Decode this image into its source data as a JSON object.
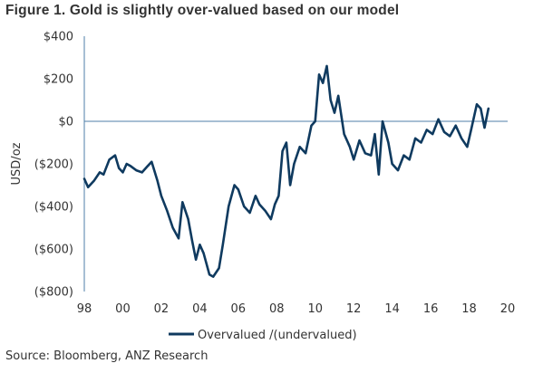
{
  "figure": {
    "title": "Figure 1. Gold is slightly over-valued based on our model",
    "source": "Source: Bloomberg, ANZ Research"
  },
  "chart_data": {
    "type": "line",
    "ylabel": "USD/oz",
    "xlabel": "",
    "xlim": [
      1998,
      2020
    ],
    "ylim": [
      -800,
      400
    ],
    "x_tick_values": [
      1998,
      2000,
      2002,
      2004,
      2006,
      2008,
      2010,
      2012,
      2014,
      2016,
      2018,
      2020
    ],
    "x_tick_labels": [
      "98",
      "00",
      "02",
      "04",
      "06",
      "08",
      "10",
      "12",
      "14",
      "16",
      "18",
      "20"
    ],
    "y_tick_values": [
      400,
      200,
      0,
      -200,
      -400,
      -600,
      -800
    ],
    "y_tick_labels": [
      "$400",
      "$200",
      "$0",
      "($200)",
      "($400)",
      "($600)",
      "($800)"
    ],
    "legend_position": "bottom",
    "line_color": "#0f3a5f",
    "axis_color": "#4f7fa8",
    "series": [
      {
        "name": "Overvalued /(undervalued)",
        "x": [
          1998.0,
          1998.2,
          1998.5,
          1998.8,
          1999.0,
          1999.3,
          1999.6,
          1999.8,
          2000.0,
          2000.2,
          2000.4,
          2000.7,
          2001.0,
          2001.3,
          2001.5,
          2001.8,
          2002.0,
          2002.3,
          2002.6,
          2002.9,
          2003.1,
          2003.4,
          2003.6,
          2003.8,
          2004.0,
          2004.2,
          2004.5,
          2004.7,
          2005.0,
          2005.2,
          2005.5,
          2005.8,
          2006.0,
          2006.3,
          2006.6,
          2006.9,
          2007.1,
          2007.4,
          2007.7,
          2007.9,
          2008.1,
          2008.3,
          2008.5,
          2008.7,
          2008.9,
          2009.2,
          2009.5,
          2009.8,
          2010.0,
          2010.2,
          2010.4,
          2010.6,
          2010.8,
          2011.0,
          2011.2,
          2011.5,
          2011.8,
          2012.0,
          2012.3,
          2012.6,
          2012.9,
          2013.1,
          2013.3,
          2013.5,
          2013.8,
          2014.0,
          2014.3,
          2014.6,
          2014.9,
          2015.2,
          2015.5,
          2015.8,
          2016.1,
          2016.4,
          2016.7,
          2017.0,
          2017.3,
          2017.6,
          2017.9,
          2018.1,
          2018.4,
          2018.6,
          2018.8,
          2019.0
        ],
        "y": [
          -270,
          -310,
          -280,
          -240,
          -250,
          -180,
          -160,
          -220,
          -240,
          -200,
          -210,
          -230,
          -240,
          -210,
          -190,
          -280,
          -350,
          -420,
          -500,
          -550,
          -380,
          -460,
          -560,
          -650,
          -580,
          -620,
          -720,
          -730,
          -690,
          -580,
          -400,
          -300,
          -320,
          -400,
          -430,
          -350,
          -390,
          -420,
          -460,
          -390,
          -350,
          -140,
          -100,
          -300,
          -200,
          -120,
          -150,
          -20,
          0,
          220,
          180,
          260,
          100,
          40,
          120,
          -60,
          -120,
          -180,
          -90,
          -150,
          -160,
          -60,
          -250,
          0,
          -100,
          -200,
          -230,
          -160,
          -180,
          -80,
          -100,
          -40,
          -60,
          10,
          -50,
          -70,
          -20,
          -80,
          -120,
          -40,
          80,
          60,
          -30,
          60
        ]
      }
    ]
  }
}
